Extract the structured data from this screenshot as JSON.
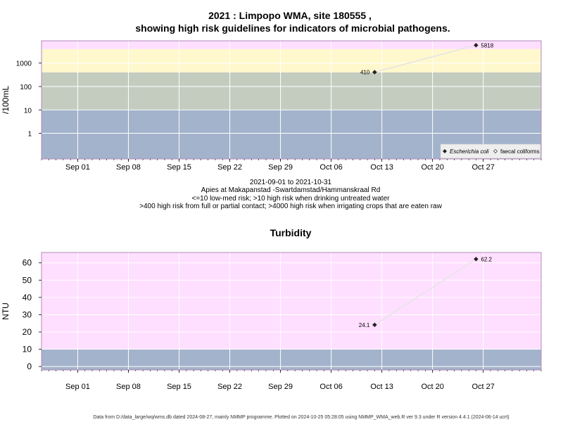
{
  "colors": {
    "pink": "#ffdfff",
    "yellow": "#fff8cc",
    "sage": "#c4ccc0",
    "blue": "#a3b3cb",
    "line": "#e4e4e4",
    "grid": "#ffffff",
    "frame": "#b088b8"
  },
  "chart_data": [
    {
      "type": "line",
      "title": "2021 : Limpopo WMA, site 180555 ,",
      "subtitle": "showing high risk guidelines for indicators of microbial pathogens.",
      "ylabel": "/100mL",
      "xlabel": "",
      "log_y": true,
      "ylim": [
        0.08,
        9000
      ],
      "xlim": [
        "2021-08-27",
        "2021-11-04"
      ],
      "x_ticks": [
        {
          "date": "2021-09-01",
          "label": "Sep 01"
        },
        {
          "date": "2021-09-08",
          "label": "Sep 08"
        },
        {
          "date": "2021-09-15",
          "label": "Sep 15"
        },
        {
          "date": "2021-09-22",
          "label": "Sep 22"
        },
        {
          "date": "2021-09-29",
          "label": "Sep 29"
        },
        {
          "date": "2021-10-06",
          "label": "Oct 06"
        },
        {
          "date": "2021-10-13",
          "label": "Oct 13"
        },
        {
          "date": "2021-10-20",
          "label": "Oct 20"
        },
        {
          "date": "2021-10-27",
          "label": "Oct 27"
        }
      ],
      "y_ticks": [
        {
          "value": 1,
          "label": "1"
        },
        {
          "value": 10,
          "label": "10"
        },
        {
          "value": 100,
          "label": "100"
        },
        {
          "value": 1000,
          "label": "1000"
        }
      ],
      "bands": [
        {
          "from": 0.08,
          "to": 10,
          "color": "#a3b3cb"
        },
        {
          "from": 10,
          "to": 400,
          "color": "#c4ccc0"
        },
        {
          "from": 400,
          "to": 4000,
          "color": "#fff8cc"
        },
        {
          "from": 4000,
          "to": 9000,
          "color": "#ffdfff"
        }
      ],
      "series": [
        {
          "name": "Escherichia coli",
          "points": [
            {
              "x": "2021-10-12",
              "y": 410,
              "label": "410",
              "label_side": "left"
            },
            {
              "x": "2021-10-26",
              "y": 5818,
              "label": "5818",
              "label_side": "right"
            }
          ]
        }
      ],
      "legend": {
        "position": "bottom-right",
        "entries": [
          {
            "marker": "filled-diamond",
            "label": "Escherichia coli",
            "italic": true
          },
          {
            "marker": "open-diamond",
            "label": "faecal coliforms",
            "italic": false
          }
        ]
      },
      "notes": [
        "2021-09-01 to 2021-10-31",
        "Apies at Makapanstad -Swartdamstad/Hammanskraal Rd",
        "<=10 low-med risk; >10 high risk when drinking untreated water",
        ">400 high risk from full or partial contact; >4000 high risk when irrigating crops that are eaten raw"
      ]
    },
    {
      "type": "line",
      "title": "Turbidity",
      "ylabel": "NTU",
      "xlabel": "",
      "log_y": false,
      "ylim": [
        -2,
        66
      ],
      "xlim": [
        "2021-08-27",
        "2021-11-04"
      ],
      "x_ticks": [
        {
          "date": "2021-09-01",
          "label": "Sep 01"
        },
        {
          "date": "2021-09-08",
          "label": "Sep 08"
        },
        {
          "date": "2021-09-15",
          "label": "Sep 15"
        },
        {
          "date": "2021-09-22",
          "label": "Sep 22"
        },
        {
          "date": "2021-09-29",
          "label": "Sep 29"
        },
        {
          "date": "2021-10-06",
          "label": "Oct 06"
        },
        {
          "date": "2021-10-13",
          "label": "Oct 13"
        },
        {
          "date": "2021-10-20",
          "label": "Oct 20"
        },
        {
          "date": "2021-10-27",
          "label": "Oct 27"
        }
      ],
      "y_ticks": [
        {
          "value": 0,
          "label": "0"
        },
        {
          "value": 10,
          "label": "10"
        },
        {
          "value": 20,
          "label": "20"
        },
        {
          "value": 30,
          "label": "30"
        },
        {
          "value": 40,
          "label": "40"
        },
        {
          "value": 50,
          "label": "50"
        },
        {
          "value": 60,
          "label": "60"
        }
      ],
      "bands": [
        {
          "from": -2,
          "to": 10,
          "color": "#a3b3cb"
        },
        {
          "from": 10,
          "to": 66,
          "color": "#ffdfff"
        }
      ],
      "series": [
        {
          "points": [
            {
              "x": "2021-10-12",
              "y": 24.1,
              "label": "24.1",
              "label_side": "left"
            },
            {
              "x": "2021-10-26",
              "y": 62.2,
              "label": "62.2",
              "label_side": "right"
            }
          ]
        }
      ]
    }
  ],
  "footer": "Data from D:/data_large/wq/wms.db dated 2024-08-27, mainly NMMP programme. Plotted on 2024-10-25 05:28:05 using NMMP_WMA_web.R ver 9.3 under R version 4.4.1 (2024-06-14 ucrt)"
}
